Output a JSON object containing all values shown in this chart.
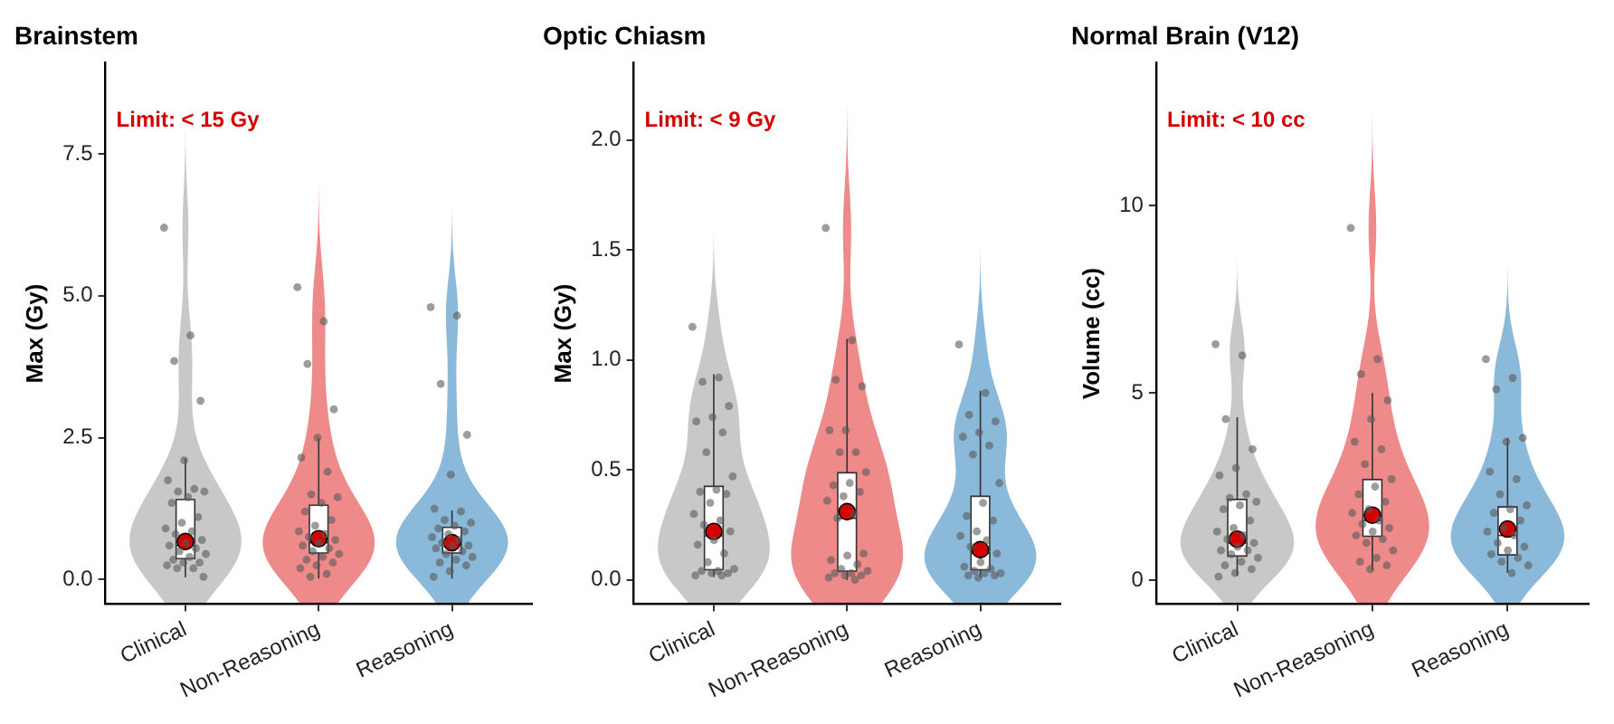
{
  "chart_data": [
    {
      "type": "box",
      "title": "Brainstem",
      "ylabel": "Max (Gy)",
      "annotations": [
        "Limit: < 15 Gy"
      ],
      "categories": [
        "Clinical",
        "Non-Reasoning",
        "Reasoning"
      ],
      "ylim": [
        -0.43,
        9.1
      ],
      "yticks": [
        {
          "value": 0,
          "label": "0.0"
        },
        {
          "value": 2.5,
          "label": "2.5"
        },
        {
          "value": 5,
          "label": "5.0"
        },
        {
          "value": 7.5,
          "label": "7.5"
        }
      ],
      "boxes": [
        {
          "low": 0.04,
          "q1": 0.37,
          "median": 0.6,
          "q3": 1.41,
          "high": 2.13,
          "mean": 0.67
        },
        {
          "low": 0.02,
          "q1": 0.47,
          "median": 0.65,
          "q3": 1.31,
          "high": 2.49,
          "mean": 0.72
        },
        {
          "low": 0.02,
          "q1": 0.47,
          "median": 0.65,
          "q3": 0.92,
          "high": 1.22,
          "mean": 0.65
        }
      ],
      "series": [
        {
          "type": "scatter",
          "color": "#5a5a5a",
          "x": [
            "Clinical",
            "Clinical",
            "Clinical",
            "Clinical",
            "Clinical",
            "Clinical",
            "Clinical",
            "Clinical",
            "Clinical",
            "Clinical",
            "Clinical",
            "Clinical",
            "Clinical",
            "Clinical",
            "Clinical",
            "Clinical",
            "Clinical",
            "Clinical",
            "Clinical",
            "Clinical",
            "Clinical",
            "Clinical",
            "Clinical",
            "Clinical",
            "Clinical",
            "Clinical",
            "Clinical",
            "Clinical",
            "Clinical",
            "Clinical"
          ],
          "values": [
            6.2,
            4.3,
            3.85,
            3.15,
            2.1,
            1.75,
            1.6,
            1.55,
            1.55,
            1.45,
            1.35,
            1.1,
            1.0,
            0.9,
            0.85,
            0.8,
            0.7,
            0.65,
            0.6,
            0.55,
            0.5,
            0.45,
            0.4,
            0.35,
            0.3,
            0.3,
            0.25,
            0.2,
            0.2,
            0.05
          ]
        },
        {
          "type": "scatter",
          "color": "#5a5a5a",
          "x": [
            "Non-Reasoning",
            "Non-Reasoning",
            "Non-Reasoning",
            "Non-Reasoning",
            "Non-Reasoning",
            "Non-Reasoning",
            "Non-Reasoning",
            "Non-Reasoning",
            "Non-Reasoning",
            "Non-Reasoning",
            "Non-Reasoning",
            "Non-Reasoning",
            "Non-Reasoning",
            "Non-Reasoning",
            "Non-Reasoning",
            "Non-Reasoning",
            "Non-Reasoning",
            "Non-Reasoning",
            "Non-Reasoning",
            "Non-Reasoning",
            "Non-Reasoning",
            "Non-Reasoning",
            "Non-Reasoning",
            "Non-Reasoning",
            "Non-Reasoning",
            "Non-Reasoning",
            "Non-Reasoning",
            "Non-Reasoning",
            "Non-Reasoning"
          ],
          "values": [
            5.15,
            4.55,
            3.8,
            3.0,
            2.5,
            2.15,
            1.9,
            1.5,
            1.45,
            1.35,
            1.2,
            1.05,
            0.95,
            0.85,
            0.8,
            0.75,
            0.7,
            0.65,
            0.6,
            0.55,
            0.5,
            0.45,
            0.4,
            0.35,
            0.3,
            0.25,
            0.2,
            0.1,
            0.05
          ]
        },
        {
          "type": "scatter",
          "color": "#5a5a5a",
          "x": [
            "Reasoning",
            "Reasoning",
            "Reasoning",
            "Reasoning",
            "Reasoning",
            "Reasoning",
            "Reasoning",
            "Reasoning",
            "Reasoning",
            "Reasoning",
            "Reasoning",
            "Reasoning",
            "Reasoning",
            "Reasoning",
            "Reasoning",
            "Reasoning",
            "Reasoning",
            "Reasoning",
            "Reasoning",
            "Reasoning",
            "Reasoning",
            "Reasoning",
            "Reasoning",
            "Reasoning",
            "Reasoning",
            "Reasoning",
            "Reasoning"
          ],
          "values": [
            4.8,
            4.65,
            3.45,
            2.55,
            1.85,
            1.25,
            1.2,
            1.05,
            1.0,
            0.95,
            0.9,
            0.85,
            0.8,
            0.75,
            0.7,
            0.65,
            0.6,
            0.6,
            0.55,
            0.5,
            0.45,
            0.4,
            0.35,
            0.3,
            0.25,
            0.15,
            0.05
          ]
        }
      ]
    },
    {
      "type": "box",
      "title": "Optic Chiasm",
      "ylabel": "Max (Gy)",
      "annotations": [
        "Limit: < 9 Gy"
      ],
      "categories": [
        "Clinical",
        "Non-Reasoning",
        "Reasoning"
      ],
      "ylim": [
        -0.11,
        2.35
      ],
      "yticks": [
        {
          "value": 0,
          "label": "0.0"
        },
        {
          "value": 0.5,
          "label": "0.5"
        },
        {
          "value": 1,
          "label": "1.0"
        },
        {
          "value": 1.5,
          "label": "1.5"
        },
        {
          "value": 2,
          "label": "2.0"
        }
      ],
      "boxes": [
        {
          "low": 0.013,
          "q1": 0.046,
          "median": 0.2,
          "q3": 0.425,
          "high": 0.935,
          "mean": 0.22
        },
        {
          "low": 0.0,
          "q1": 0.04,
          "median": 0.28,
          "q3": 0.487,
          "high": 1.095,
          "mean": 0.31
        },
        {
          "low": 0.01,
          "q1": 0.046,
          "median": 0.12,
          "q3": 0.38,
          "high": 0.86,
          "mean": 0.137
        }
      ],
      "series": [
        {
          "type": "scatter",
          "color": "#5a5a5a",
          "x": [
            "Clinical",
            "Clinical",
            "Clinical",
            "Clinical",
            "Clinical",
            "Clinical",
            "Clinical",
            "Clinical",
            "Clinical",
            "Clinical",
            "Clinical",
            "Clinical",
            "Clinical",
            "Clinical",
            "Clinical",
            "Clinical",
            "Clinical",
            "Clinical",
            "Clinical",
            "Clinical",
            "Clinical",
            "Clinical",
            "Clinical",
            "Clinical",
            "Clinical",
            "Clinical",
            "Clinical",
            "Clinical"
          ],
          "values": [
            1.15,
            0.92,
            0.9,
            0.79,
            0.74,
            0.72,
            0.67,
            0.58,
            0.47,
            0.41,
            0.4,
            0.39,
            0.35,
            0.3,
            0.27,
            0.25,
            0.22,
            0.18,
            0.16,
            0.12,
            0.08,
            0.05,
            0.04,
            0.04,
            0.03,
            0.03,
            0.02,
            0.02
          ]
        },
        {
          "type": "scatter",
          "color": "#5a5a5a",
          "x": [
            "Non-Reasoning",
            "Non-Reasoning",
            "Non-Reasoning",
            "Non-Reasoning",
            "Non-Reasoning",
            "Non-Reasoning",
            "Non-Reasoning",
            "Non-Reasoning",
            "Non-Reasoning",
            "Non-Reasoning",
            "Non-Reasoning",
            "Non-Reasoning",
            "Non-Reasoning",
            "Non-Reasoning",
            "Non-Reasoning",
            "Non-Reasoning",
            "Non-Reasoning",
            "Non-Reasoning",
            "Non-Reasoning",
            "Non-Reasoning",
            "Non-Reasoning",
            "Non-Reasoning",
            "Non-Reasoning",
            "Non-Reasoning",
            "Non-Reasoning",
            "Non-Reasoning",
            "Non-Reasoning",
            "Non-Reasoning"
          ],
          "values": [
            1.6,
            1.09,
            0.91,
            0.88,
            0.68,
            0.68,
            0.58,
            0.58,
            0.49,
            0.44,
            0.43,
            0.4,
            0.38,
            0.36,
            0.3,
            0.28,
            0.12,
            0.11,
            0.09,
            0.07,
            0.05,
            0.04,
            0.03,
            0.03,
            0.02,
            0.02,
            0.01,
            0.0
          ]
        },
        {
          "type": "scatter",
          "color": "#5a5a5a",
          "x": [
            "Reasoning",
            "Reasoning",
            "Reasoning",
            "Reasoning",
            "Reasoning",
            "Reasoning",
            "Reasoning",
            "Reasoning",
            "Reasoning",
            "Reasoning",
            "Reasoning",
            "Reasoning",
            "Reasoning",
            "Reasoning",
            "Reasoning",
            "Reasoning",
            "Reasoning",
            "Reasoning",
            "Reasoning",
            "Reasoning",
            "Reasoning",
            "Reasoning",
            "Reasoning",
            "Reasoning",
            "Reasoning",
            "Reasoning"
          ],
          "values": [
            1.07,
            0.85,
            0.75,
            0.72,
            0.67,
            0.65,
            0.61,
            0.57,
            0.44,
            0.35,
            0.29,
            0.27,
            0.22,
            0.2,
            0.18,
            0.15,
            0.12,
            0.08,
            0.06,
            0.05,
            0.04,
            0.03,
            0.03,
            0.02,
            0.02,
            0.01
          ]
        }
      ]
    },
    {
      "type": "box",
      "title": "Normal Brain (V12)",
      "ylabel": "Volume (cc)",
      "annotations": [
        "Limit: < 10 cc"
      ],
      "categories": [
        "Clinical",
        "Non-Reasoning",
        "Reasoning"
      ],
      "ylim": [
        -0.63,
        13.8
      ],
      "yticks": [
        0,
        5,
        10
      ],
      "boxes": [
        {
          "low": 0.12,
          "q1": 0.65,
          "median": 1.0,
          "q3": 2.16,
          "high": 4.35,
          "mean": 1.1
        },
        {
          "low": 0.27,
          "q1": 1.18,
          "median": 1.6,
          "q3": 2.69,
          "high": 5.0,
          "mean": 1.74
        },
        {
          "low": 0.2,
          "q1": 0.68,
          "median": 1.2,
          "q3": 1.96,
          "high": 3.8,
          "mean": 1.37
        }
      ],
      "series": [
        {
          "type": "scatter",
          "color": "#5a5a5a",
          "x": [
            "Clinical",
            "Clinical",
            "Clinical",
            "Clinical",
            "Clinical",
            "Clinical",
            "Clinical",
            "Clinical",
            "Clinical",
            "Clinical",
            "Clinical",
            "Clinical",
            "Clinical",
            "Clinical",
            "Clinical",
            "Clinical",
            "Clinical",
            "Clinical",
            "Clinical",
            "Clinical",
            "Clinical",
            "Clinical",
            "Clinical",
            "Clinical",
            "Clinical",
            "Clinical",
            "Clinical"
          ],
          "values": [
            6.3,
            6.0,
            4.3,
            3.5,
            3.0,
            2.8,
            2.3,
            2.2,
            2.1,
            2.0,
            1.9,
            1.6,
            1.4,
            1.3,
            1.2,
            1.1,
            1.0,
            0.9,
            0.8,
            0.8,
            0.7,
            0.6,
            0.5,
            0.4,
            0.3,
            0.2,
            0.1
          ]
        },
        {
          "type": "scatter",
          "color": "#5a5a5a",
          "x": [
            "Non-Reasoning",
            "Non-Reasoning",
            "Non-Reasoning",
            "Non-Reasoning",
            "Non-Reasoning",
            "Non-Reasoning",
            "Non-Reasoning",
            "Non-Reasoning",
            "Non-Reasoning",
            "Non-Reasoning",
            "Non-Reasoning",
            "Non-Reasoning",
            "Non-Reasoning",
            "Non-Reasoning",
            "Non-Reasoning",
            "Non-Reasoning",
            "Non-Reasoning",
            "Non-Reasoning",
            "Non-Reasoning",
            "Non-Reasoning",
            "Non-Reasoning",
            "Non-Reasoning",
            "Non-Reasoning",
            "Non-Reasoning",
            "Non-Reasoning",
            "Non-Reasoning"
          ],
          "values": [
            9.4,
            5.9,
            5.5,
            4.8,
            4.3,
            3.7,
            3.5,
            3.1,
            2.7,
            2.5,
            2.3,
            2.1,
            1.9,
            1.8,
            1.6,
            1.5,
            1.4,
            1.3,
            1.2,
            1.1,
            1.0,
            0.8,
            0.6,
            0.5,
            0.4,
            0.3
          ]
        },
        {
          "type": "scatter",
          "color": "#5a5a5a",
          "x": [
            "Reasoning",
            "Reasoning",
            "Reasoning",
            "Reasoning",
            "Reasoning",
            "Reasoning",
            "Reasoning",
            "Reasoning",
            "Reasoning",
            "Reasoning",
            "Reasoning",
            "Reasoning",
            "Reasoning",
            "Reasoning",
            "Reasoning",
            "Reasoning",
            "Reasoning",
            "Reasoning",
            "Reasoning",
            "Reasoning",
            "Reasoning",
            "Reasoning",
            "Reasoning"
          ],
          "values": [
            5.9,
            5.4,
            5.1,
            3.8,
            3.7,
            2.9,
            2.7,
            2.3,
            2.0,
            1.9,
            1.8,
            1.6,
            1.4,
            1.3,
            1.2,
            1.0,
            0.9,
            0.8,
            0.7,
            0.6,
            0.5,
            0.4,
            0.2
          ]
        }
      ]
    }
  ]
}
